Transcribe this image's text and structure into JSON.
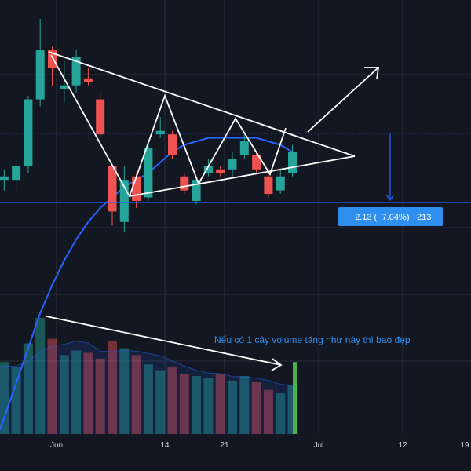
{
  "chart_data": {
    "type": "candlestick",
    "colors": {
      "up": "#26a69a",
      "down": "#ef5350",
      "ma": "#2962ff",
      "background": "#131722",
      "grid": "#2a2e39",
      "annotation_line": "#ffffff",
      "note_text": "#2f8ff0",
      "badge": "#2f8ff0",
      "highlight_volume": "#4caf50"
    },
    "x_axis": {
      "ticks": [
        "Jun",
        "14",
        "21",
        "Jul",
        "12",
        "19"
      ]
    },
    "candles": [
      {
        "o": 44.3,
        "h": 44.6,
        "l": 44.0,
        "c": 44.3
      },
      {
        "o": 44.2,
        "h": 44.5,
        "l": 43.9,
        "c": 44.3
      },
      {
        "o": 44.2,
        "h": 44.8,
        "l": 43.9,
        "c": 44.6
      },
      {
        "o": 44.6,
        "h": 46.6,
        "l": 44.4,
        "c": 46.5
      },
      {
        "o": 46.5,
        "h": 48.8,
        "l": 46.3,
        "c": 47.9
      },
      {
        "o": 47.9,
        "h": 48.0,
        "l": 46.9,
        "c": 47.4
      },
      {
        "o": 46.8,
        "h": 47.6,
        "l": 46.4,
        "c": 46.9
      },
      {
        "o": 46.9,
        "h": 47.9,
        "l": 46.7,
        "c": 47.7
      },
      {
        "o": 47.1,
        "h": 47.4,
        "l": 46.9,
        "c": 47.0
      },
      {
        "o": 46.5,
        "h": 46.7,
        "l": 45.4,
        "c": 45.5
      },
      {
        "o": 44.6,
        "h": 44.6,
        "l": 42.9,
        "c": 43.3
      },
      {
        "o": 43.0,
        "h": 44.6,
        "l": 42.7,
        "c": 44.2
      },
      {
        "o": 44.3,
        "h": 44.4,
        "l": 43.4,
        "c": 43.6
      },
      {
        "o": 43.7,
        "h": 45.3,
        "l": 43.6,
        "c": 45.1
      },
      {
        "o": 45.5,
        "h": 46.0,
        "l": 45.4,
        "c": 45.6
      },
      {
        "o": 45.5,
        "h": 45.6,
        "l": 44.8,
        "c": 44.9
      },
      {
        "o": 44.3,
        "h": 44.4,
        "l": 43.8,
        "c": 43.9
      },
      {
        "o": 43.6,
        "h": 44.3,
        "l": 43.5,
        "c": 44.2
      },
      {
        "o": 44.4,
        "h": 44.8,
        "l": 44.3,
        "c": 44.6
      },
      {
        "o": 44.5,
        "h": 44.6,
        "l": 44.3,
        "c": 44.4
      },
      {
        "o": 44.5,
        "h": 45.0,
        "l": 44.3,
        "c": 44.8
      },
      {
        "o": 44.9,
        "h": 45.5,
        "l": 44.8,
        "c": 45.3
      },
      {
        "o": 44.9,
        "h": 45.0,
        "l": 44.4,
        "c": 44.5
      },
      {
        "o": 44.3,
        "h": 44.5,
        "l": 43.7,
        "c": 43.8
      },
      {
        "o": 43.9,
        "h": 44.5,
        "l": 43.8,
        "c": 44.3
      },
      {
        "o": 44.4,
        "h": 45.2,
        "l": 44.3,
        "c": 45.0
      }
    ],
    "ma_values": [
      36.5,
      37.4,
      38.4,
      39.4,
      40.4,
      41.2,
      41.9,
      42.5,
      43.0,
      43.4,
      43.7,
      44.0,
      44.2,
      44.4,
      44.7,
      45.0,
      45.2,
      45.3,
      45.4,
      45.4,
      45.4,
      45.4,
      45.4,
      45.3,
      45.2,
      45.0
    ],
    "volume": {
      "values": [
        55,
        62,
        58,
        78,
        100,
        82,
        68,
        72,
        70,
        65,
        80,
        74,
        68,
        60,
        55,
        58,
        52,
        50,
        48,
        52,
        46,
        50,
        45,
        38,
        35,
        42
      ],
      "highlight_bar_value": 62
    },
    "measure_badge": {
      "text": "−2.13 (−7.04%) −213"
    },
    "volume_note": "Nếu có 1 cây volume tăng như này thì bao đẹp"
  }
}
